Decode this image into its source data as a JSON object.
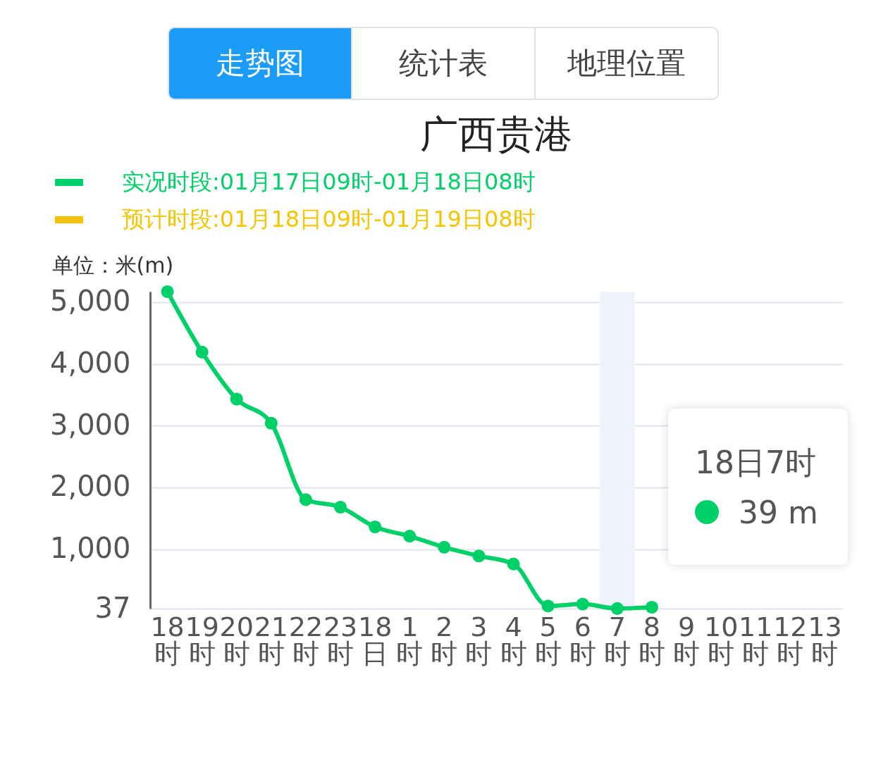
{
  "chart_data": {
    "type": "line",
    "title": "广西贵港",
    "ylabel": "单位：米(m)",
    "categories": [
      "18时",
      "19时",
      "20时",
      "21时",
      "22时",
      "23时",
      "18日",
      "1时",
      "2时",
      "3时",
      "4时",
      "5时",
      "6时",
      "7时",
      "8时",
      "9时",
      "10时",
      "11时",
      "12时",
      "13时"
    ],
    "series": [
      {
        "name": "实况时段:01月17日09时-01月18日08时",
        "color": "#00d068",
        "values": [
          5170,
          4190,
          3430,
          3040,
          1800,
          1680,
          1360,
          1210,
          1030,
          890,
          760,
          80,
          110,
          39,
          60,
          null,
          null,
          null,
          null,
          null
        ]
      },
      {
        "name": "预计时段:01月18日09时-01月19日08时",
        "color": "#f5c400",
        "values": [
          null,
          null,
          null,
          null,
          null,
          null,
          null,
          null,
          null,
          null,
          null,
          null,
          null,
          null,
          null,
          null,
          null,
          null,
          null,
          null
        ]
      }
    ],
    "ylim": [
      37,
      5170
    ],
    "yticks": [
      37,
      {
        "value": 1000,
        "label": "1,000"
      },
      {
        "value": 2000,
        "label": "2,000"
      },
      {
        "value": 3000,
        "label": "3,000"
      },
      {
        "value": 4000,
        "label": "4,000"
      },
      {
        "value": 5000,
        "label": "5,000"
      }
    ],
    "grid": "y",
    "legend": "top left",
    "marker": "circle",
    "line_style": "solid",
    "bands": [
      {
        "axis": "x",
        "from": "7时",
        "to": "7时",
        "color": "#eef2fa"
      }
    ],
    "annotations": [
      "走势图",
      "统计表",
      "地理位置",
      "18日7时",
      "39 m"
    ]
  }
}
